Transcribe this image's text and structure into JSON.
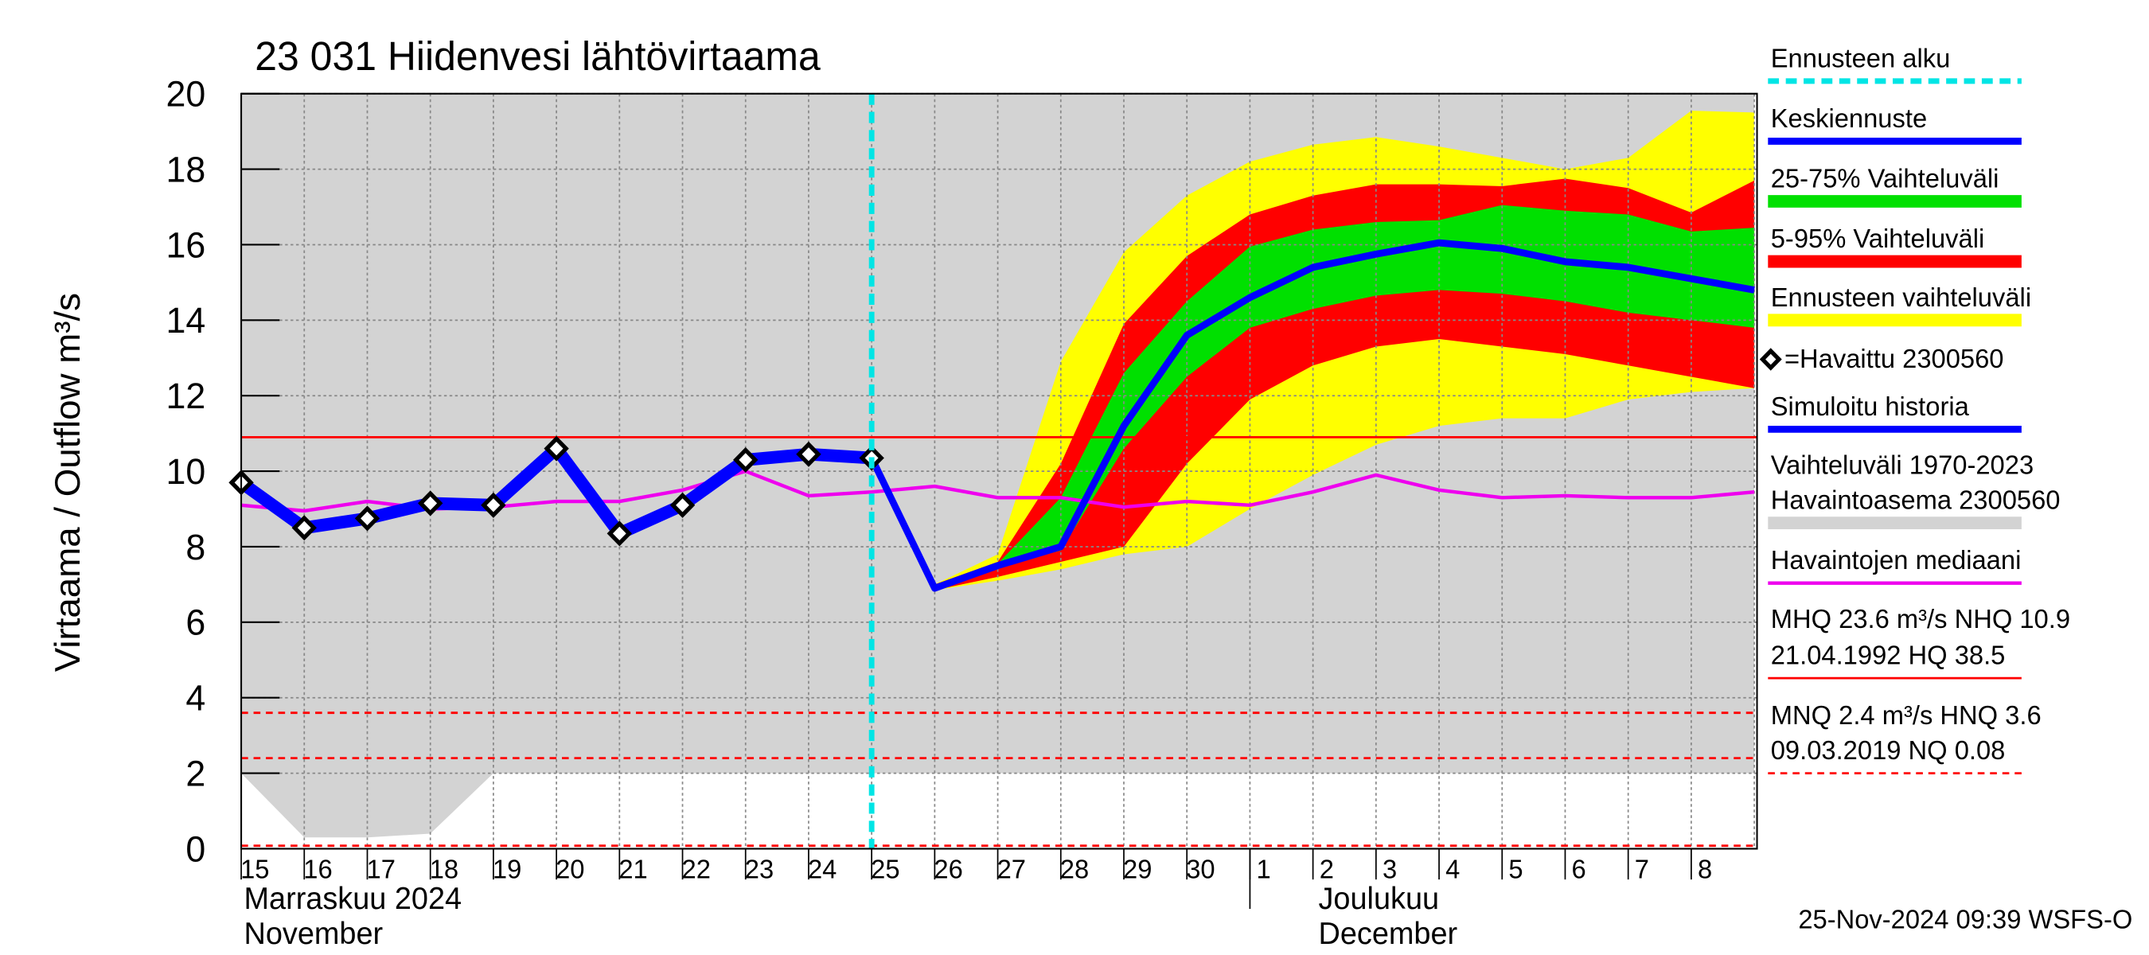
{
  "chart_data": {
    "type": "line",
    "title": "23 031 Hiidenvesi lähtövirtaama",
    "y_label": "Virtaama / Outflow    m³/s",
    "footer": "25-Nov-2024 09:39 WSFS-O",
    "month_labels": [
      [
        "Marraskuu 2024",
        "November"
      ],
      [
        "Joulukuu",
        "December"
      ]
    ],
    "categories": [
      "15",
      "16",
      "17",
      "18",
      "19",
      "20",
      "21",
      "22",
      "23",
      "24",
      "25",
      "26",
      "27",
      "28",
      "29",
      "30",
      "1",
      "2",
      "3",
      "4",
      "5",
      "6",
      "7",
      "8",
      null
    ],
    "ylim": [
      0,
      20
    ],
    "yticks": [
      0,
      2,
      4,
      6,
      8,
      10,
      12,
      14,
      16,
      18,
      20
    ],
    "grid": true,
    "series": [
      {
        "name": "Ennusteen alku",
        "kind": "vline",
        "color": "#00e5e5",
        "x": "25"
      },
      {
        "name": "Keskiennuste",
        "kind": "line",
        "color": "#0000ff",
        "values": [
          null,
          null,
          null,
          null,
          null,
          null,
          null,
          null,
          null,
          null,
          10.35,
          6.9,
          7.5,
          8.0,
          11.2,
          13.6,
          14.6,
          15.4,
          15.75,
          16.05,
          15.9,
          15.55,
          15.4,
          15.1,
          14.8
        ]
      },
      {
        "name": "25-75% Vaihteluväli",
        "kind": "band",
        "color": "#00e000",
        "upper": [
          null,
          null,
          null,
          null,
          null,
          null,
          null,
          null,
          null,
          null,
          null,
          6.95,
          7.55,
          9.3,
          12.6,
          14.5,
          15.95,
          16.4,
          16.6,
          16.65,
          17.05,
          16.9,
          16.8,
          16.35,
          16.45
        ],
        "lower": [
          null,
          null,
          null,
          null,
          null,
          null,
          null,
          null,
          null,
          null,
          null,
          6.9,
          7.45,
          7.9,
          10.6,
          12.5,
          13.8,
          14.3,
          14.65,
          14.8,
          14.7,
          14.5,
          14.2,
          14.0,
          13.8
        ]
      },
      {
        "name": "5-95% Vaihteluväli",
        "kind": "band",
        "color": "#ff0000",
        "upper": [
          null,
          null,
          null,
          null,
          null,
          null,
          null,
          null,
          null,
          null,
          null,
          7.0,
          7.6,
          10.2,
          13.9,
          15.7,
          16.8,
          17.3,
          17.6,
          17.6,
          17.55,
          17.75,
          17.5,
          16.85,
          17.7
        ],
        "lower": [
          null,
          null,
          null,
          null,
          null,
          null,
          null,
          null,
          null,
          null,
          null,
          6.85,
          7.2,
          7.6,
          8.0,
          10.2,
          11.9,
          12.8,
          13.3,
          13.5,
          13.3,
          13.1,
          12.8,
          12.5,
          12.2
        ]
      },
      {
        "name": "Ennusteen vaihteluväli",
        "kind": "band",
        "color": "#ffff00",
        "upper": [
          null,
          null,
          null,
          null,
          null,
          null,
          null,
          null,
          null,
          null,
          null,
          7.0,
          7.8,
          12.9,
          15.8,
          17.3,
          18.2,
          18.65,
          18.85,
          18.6,
          18.3,
          18.0,
          18.3,
          19.55,
          19.5
        ],
        "lower": [
          null,
          null,
          null,
          null,
          null,
          null,
          null,
          null,
          null,
          null,
          null,
          6.85,
          7.1,
          7.4,
          7.8,
          8.0,
          9.0,
          9.9,
          10.7,
          11.2,
          11.4,
          11.4,
          11.9,
          12.1,
          12.2
        ]
      },
      {
        "name": "=Havaittu 2300560",
        "kind": "markers",
        "color": "#000000",
        "values": [
          9.7,
          8.5,
          8.75,
          9.15,
          9.1,
          10.6,
          8.35,
          9.1,
          10.3,
          10.45,
          10.35,
          null,
          null,
          null,
          null,
          null,
          null,
          null,
          null,
          null,
          null,
          null,
          null,
          null,
          null
        ]
      },
      {
        "name": "Simuloitu historia",
        "kind": "line",
        "color": "#0000ff",
        "values": [
          9.7,
          8.5,
          8.75,
          9.15,
          9.1,
          10.6,
          8.35,
          9.1,
          10.3,
          10.45,
          10.35,
          null,
          null,
          null,
          null,
          null,
          null,
          null,
          null,
          null,
          null,
          null,
          null,
          null,
          null
        ]
      },
      {
        "name": [
          "Vaihteluväli 1970-2023",
          " Havaintoasema 2300560"
        ],
        "kind": "band",
        "color": "#d3d3d3",
        "upper": [
          20,
          20,
          20,
          20,
          20,
          20,
          20,
          20,
          20,
          20,
          20,
          20,
          20,
          20,
          20,
          20,
          20,
          20,
          20,
          20,
          20,
          20,
          20,
          20,
          20
        ],
        "lower": [
          2.0,
          0.3,
          0.3,
          0.4,
          2.0,
          2.0,
          2.0,
          2.0,
          2.0,
          2.0,
          2.0,
          2.0,
          2.0,
          2.0,
          2.0,
          2.0,
          2.0,
          2.0,
          2.0,
          2.0,
          2.0,
          2.0,
          2.0,
          2.0,
          2.0
        ]
      },
      {
        "name": "Havaintojen mediaani",
        "kind": "line",
        "color": "#ee00ee",
        "values": [
          9.1,
          8.95,
          9.2,
          9.0,
          9.05,
          9.2,
          9.2,
          9.5,
          10.0,
          9.35,
          9.45,
          9.6,
          9.3,
          9.3,
          9.05,
          9.2,
          9.1,
          9.45,
          9.9,
          9.5,
          9.3,
          9.35,
          9.3,
          9.3,
          9.45
        ]
      }
    ],
    "hlines": [
      {
        "name": [
          "MHQ 23.6 m³/s NHQ 10.9",
          "21.04.1992 HQ 38.5"
        ],
        "value": 10.9,
        "color": "#ff0000",
        "dashed": false
      },
      {
        "name": [
          "MNQ  2.4 m³/s HNQ  3.6",
          "09.03.2019 NQ 0.08"
        ],
        "value": 3.6,
        "color": "#ff0000",
        "dashed": true
      },
      {
        "value": 2.4,
        "color": "#ff0000",
        "dashed": true
      },
      {
        "value": 0.08,
        "color": "#ff0000",
        "dashed": true
      }
    ]
  }
}
